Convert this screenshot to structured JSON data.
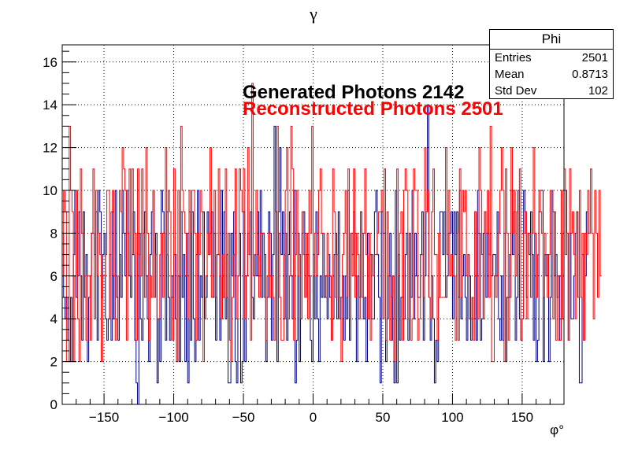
{
  "chart_data": {
    "type": "histogram",
    "title": "γ",
    "xlabel": "φ°",
    "ylabel": "",
    "xlim": [
      -180,
      180
    ],
    "ylim": [
      0,
      16.8
    ],
    "bins": 360,
    "xticks": [
      -150,
      -100,
      -50,
      0,
      50,
      100,
      150
    ],
    "yticks": [
      0,
      2,
      4,
      6,
      8,
      10,
      12,
      14,
      16
    ],
    "grid": true,
    "series": [
      {
        "name": "Generated Photons 2142",
        "color": "#00007f",
        "values": [
          8,
          5,
          4,
          5,
          3,
          2,
          5,
          2,
          7,
          10,
          5,
          6,
          9,
          6,
          3,
          9,
          5,
          7,
          2,
          5,
          6,
          8,
          8,
          7,
          9,
          3,
          10,
          9,
          5,
          7,
          8,
          4,
          3,
          4,
          7,
          3,
          9,
          4,
          10,
          5,
          3,
          7,
          5,
          10,
          8,
          6,
          10,
          8,
          6,
          5,
          7,
          9,
          3,
          1,
          0,
          8,
          4,
          3,
          8,
          9,
          6,
          4,
          2,
          7,
          9,
          10,
          5,
          8,
          1,
          4,
          2,
          10,
          9,
          8,
          3,
          9,
          5,
          3,
          6,
          5,
          7,
          4,
          2,
          6,
          2,
          9,
          5,
          7,
          2,
          8,
          1,
          9,
          3,
          9,
          4,
          2,
          7,
          10,
          3,
          6,
          5,
          9,
          4,
          5,
          9,
          7,
          8,
          9,
          5,
          8,
          3,
          7,
          7,
          3,
          10,
          5,
          9,
          4,
          7,
          1,
          1,
          8,
          6,
          9,
          2,
          1,
          6,
          8,
          1,
          2,
          9,
          2,
          6,
          8,
          7,
          9,
          5,
          4,
          7,
          6,
          9,
          6,
          10,
          5,
          8,
          7,
          2,
          5,
          9,
          8,
          3,
          7,
          13,
          9,
          2,
          9,
          12,
          7,
          9,
          4,
          8,
          3,
          7,
          9,
          6,
          4,
          10,
          1,
          3,
          8,
          2,
          4,
          8,
          9,
          5,
          7,
          7,
          6,
          3,
          2,
          7,
          4,
          9,
          4,
          2,
          6,
          5,
          8,
          5,
          6,
          4,
          7,
          5,
          3,
          4,
          7,
          8,
          4,
          9,
          4,
          5,
          6,
          3,
          6,
          4,
          10,
          3,
          8,
          7,
          9,
          6,
          2,
          6,
          5,
          9,
          8,
          4,
          5,
          2,
          8,
          4,
          7,
          4,
          4,
          9,
          10,
          7,
          5,
          1,
          9,
          8,
          8,
          2,
          4,
          6,
          8,
          3,
          6,
          1,
          10,
          1,
          7,
          3,
          5,
          5,
          4,
          7,
          8,
          3,
          8,
          5,
          10,
          4,
          8,
          6,
          5,
          5,
          7,
          9,
          3,
          6,
          9,
          14,
          5,
          3,
          6,
          4,
          1,
          3,
          2,
          5,
          9,
          9,
          7,
          9,
          5,
          6,
          8,
          8,
          9,
          4,
          9,
          7,
          9,
          5,
          10,
          4,
          6,
          7,
          5,
          3,
          7,
          6,
          3,
          5,
          4,
          9,
          3,
          10,
          8,
          3,
          4,
          8,
          9,
          5,
          8,
          7,
          8,
          6,
          7,
          7,
          6,
          9,
          4,
          3,
          6,
          3,
          8,
          2,
          5,
          5,
          7,
          10,
          7,
          9,
          3,
          5,
          10,
          4,
          3,
          4,
          10,
          9,
          5,
          8,
          7,
          9,
          7,
          3,
          8,
          2,
          3,
          9,
          10,
          10,
          2,
          7,
          6,
          7,
          2,
          5,
          10,
          9,
          6,
          7,
          5,
          6,
          3,
          4,
          8,
          10,
          10,
          8,
          3,
          8,
          4,
          4,
          6,
          8,
          9,
          5,
          1,
          1,
          7,
          3,
          6,
          9,
          8
        ]
      },
      {
        "name": "Reconstructed Photons 2501",
        "color": "#ff0000",
        "values": [
          6,
          10,
          9,
          2,
          2,
          13,
          10,
          9,
          2,
          6,
          10,
          4,
          2,
          11,
          8,
          8,
          6,
          3,
          6,
          6,
          3,
          8,
          11,
          4,
          10,
          6,
          8,
          7,
          2,
          6,
          6,
          7,
          10,
          10,
          4,
          9,
          10,
          6,
          3,
          4,
          6,
          10,
          9,
          12,
          11,
          10,
          3,
          8,
          11,
          6,
          11,
          7,
          8,
          3,
          11,
          7,
          6,
          11,
          8,
          5,
          12,
          8,
          3,
          6,
          5,
          10,
          5,
          7,
          4,
          4,
          7,
          8,
          5,
          8,
          12,
          7,
          10,
          9,
          5,
          3,
          11,
          7,
          2,
          10,
          6,
          13,
          10,
          9,
          8,
          6,
          4,
          10,
          8,
          10,
          10,
          8,
          3,
          8,
          7,
          10,
          9,
          2,
          4,
          6,
          8,
          7,
          12,
          5,
          6,
          10,
          5,
          7,
          11,
          6,
          4,
          7,
          5,
          11,
          5,
          8,
          3,
          2,
          5,
          7,
          11,
          4,
          6,
          11,
          10,
          9,
          11,
          4,
          6,
          12,
          7,
          3,
          15,
          6,
          7,
          10,
          7,
          5,
          8,
          8,
          8,
          5,
          3,
          6,
          8,
          5,
          6,
          5,
          3,
          9,
          13,
          8,
          5,
          3,
          3,
          7,
          10,
          12,
          4,
          6,
          13,
          11,
          3,
          7,
          10,
          6,
          7,
          4,
          9,
          7,
          5,
          8,
          4,
          10,
          8,
          13,
          6,
          8,
          6,
          7,
          10,
          11,
          8,
          8,
          6,
          5,
          8,
          6,
          6,
          3,
          11,
          9,
          5,
          7,
          5,
          4,
          2,
          7,
          8,
          10,
          5,
          11,
          4,
          8,
          6,
          11,
          5,
          8,
          7,
          4,
          9,
          5,
          8,
          11,
          7,
          4,
          8,
          3,
          7,
          6,
          7,
          7,
          8,
          9,
          9,
          10,
          4,
          11,
          3,
          9,
          6,
          3,
          5,
          6,
          2,
          4,
          11,
          6,
          8,
          9,
          3,
          10,
          11,
          10,
          4,
          8,
          3,
          4,
          11,
          10,
          10,
          3,
          4,
          7,
          7,
          5,
          12,
          9,
          10,
          5,
          4,
          9,
          11,
          7,
          7,
          3,
          8,
          5,
          5,
          5,
          5,
          12,
          7,
          10,
          6,
          7,
          6,
          6,
          3,
          8,
          3,
          11,
          5,
          10,
          9,
          10,
          6,
          7,
          4,
          4,
          5,
          3,
          9,
          6,
          4,
          12,
          10,
          7,
          4,
          9,
          8,
          10,
          5,
          13,
          2,
          2,
          6,
          5,
          6,
          8,
          10,
          12,
          10,
          2,
          11,
          8,
          3,
          5,
          12,
          8,
          10,
          6,
          9,
          7,
          11,
          3,
          4,
          8,
          9,
          4,
          8,
          8,
          5,
          8,
          12,
          8,
          5,
          7,
          10,
          9,
          8,
          5,
          8,
          7,
          5,
          7,
          10,
          10,
          4,
          9,
          3,
          6,
          3,
          3,
          10,
          4,
          11,
          7,
          8,
          3,
          11,
          8,
          9,
          7,
          4,
          9,
          5,
          10,
          5,
          8,
          3,
          8,
          7,
          10,
          8,
          11,
          8,
          4,
          10,
          8,
          5,
          10,
          6
        ]
      }
    ],
    "annotations": [
      {
        "text": "Generated Photons 2142",
        "color": "#000000"
      },
      {
        "text": "Reconstructed Photons 2501",
        "color": "#ff0000"
      }
    ]
  },
  "stats": {
    "title": "Phi",
    "rows": [
      {
        "label": "Entries",
        "value": "2501"
      },
      {
        "label": "Mean",
        "value": "0.8713"
      },
      {
        "label": "Std Dev",
        "value": "102"
      }
    ]
  }
}
